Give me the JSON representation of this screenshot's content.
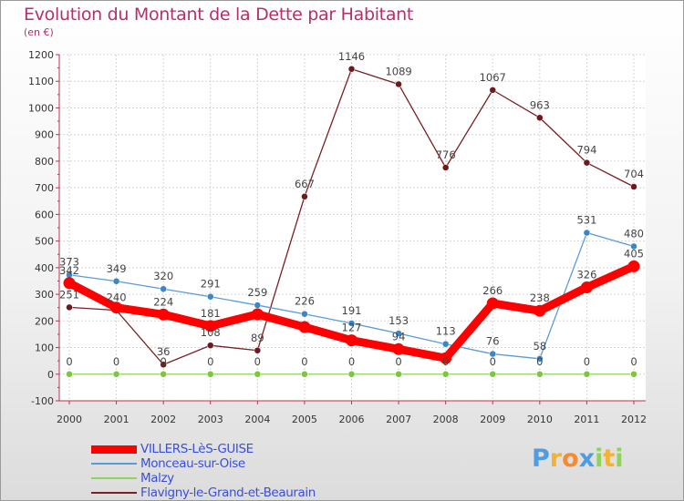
{
  "chart_data": {
    "type": "line",
    "title": "Evolution du Montant de la Dette par Habitant",
    "subtitle": "(en €)",
    "xlabel": "",
    "ylabel": "",
    "categories": [
      "2000",
      "2001",
      "2002",
      "2003",
      "2004",
      "2005",
      "2006",
      "2007",
      "2008",
      "2009",
      "2010",
      "2011",
      "2012"
    ],
    "ylim": [
      -100,
      1200
    ],
    "yticks": [
      -100,
      0,
      100,
      200,
      300,
      400,
      500,
      600,
      700,
      800,
      900,
      1000,
      1100,
      1200
    ],
    "grid": true,
    "legend_position": "bottom-left",
    "series": [
      {
        "name": "VILLERS-LèS-GUISE",
        "color": "#ff0000",
        "marker_color": "#ff0000",
        "thick": true,
        "values": [
          342,
          250,
          224,
          181,
          225,
          177,
          127,
          94,
          60,
          266,
          238,
          326,
          405
        ]
      },
      {
        "name": "Monceau-sur-Oise",
        "color": "#5b9bd5",
        "marker_color": "#3a86c8",
        "thick": false,
        "values": [
          373,
          349,
          320,
          291,
          259,
          226,
          191,
          153,
          113,
          76,
          58,
          531,
          480
        ]
      },
      {
        "name": "Malzy",
        "color": "#8fd35a",
        "marker_color": "#79c83d",
        "thick": false,
        "values": [
          0,
          0,
          0,
          0,
          0,
          0,
          0,
          0,
          0,
          0,
          0,
          0,
          0
        ]
      },
      {
        "name": "Flavigny-le-Grand-et-Beaurain",
        "color": "#7a1f22",
        "marker_color": "#6e1a1d",
        "thick": false,
        "values": [
          251,
          240,
          36,
          108,
          89,
          667,
          1146,
          1089,
          776,
          1067,
          963,
          794,
          704
        ]
      }
    ],
    "point_labels": [
      {
        "series": 0,
        "texts": [
          "342",
          "250",
          "224",
          "181",
          "225",
          "177",
          "127",
          "94",
          "60",
          "266",
          "238",
          "326",
          "405"
        ],
        "show": [
          true,
          false,
          true,
          true,
          false,
          false,
          true,
          true,
          false,
          true,
          true,
          true,
          true
        ]
      },
      {
        "series": 1,
        "texts": [
          "373",
          "349",
          "320",
          "291",
          "259",
          "226",
          "191",
          "153",
          "113",
          "76",
          "58",
          "531",
          "480"
        ],
        "show": [
          true,
          true,
          true,
          true,
          true,
          true,
          true,
          true,
          true,
          true,
          true,
          true,
          true
        ]
      },
      {
        "series": 2,
        "texts": [
          "0",
          "0",
          "0",
          "0",
          "0",
          "0",
          "0",
          "0",
          "0",
          "0",
          "0",
          "0",
          "0"
        ],
        "show": [
          true,
          true,
          true,
          true,
          true,
          true,
          true,
          true,
          true,
          true,
          true,
          true,
          true
        ]
      },
      {
        "series": 3,
        "texts": [
          "251",
          "240",
          "36",
          "108",
          "89",
          "667",
          "1146",
          "1089",
          "776",
          "1067",
          "963",
          "794",
          "704"
        ],
        "show": [
          true,
          true,
          true,
          true,
          true,
          true,
          true,
          true,
          true,
          true,
          true,
          true,
          true
        ]
      }
    ]
  },
  "logo": {
    "chars": [
      "P",
      "r",
      "o",
      "x",
      "i",
      "t",
      "i"
    ],
    "colors": [
      "#4f9de0",
      "#f2b233",
      "#f58a32",
      "#4f9de0",
      "#8fd35a",
      "#f2b233",
      "#8fd35a"
    ]
  }
}
